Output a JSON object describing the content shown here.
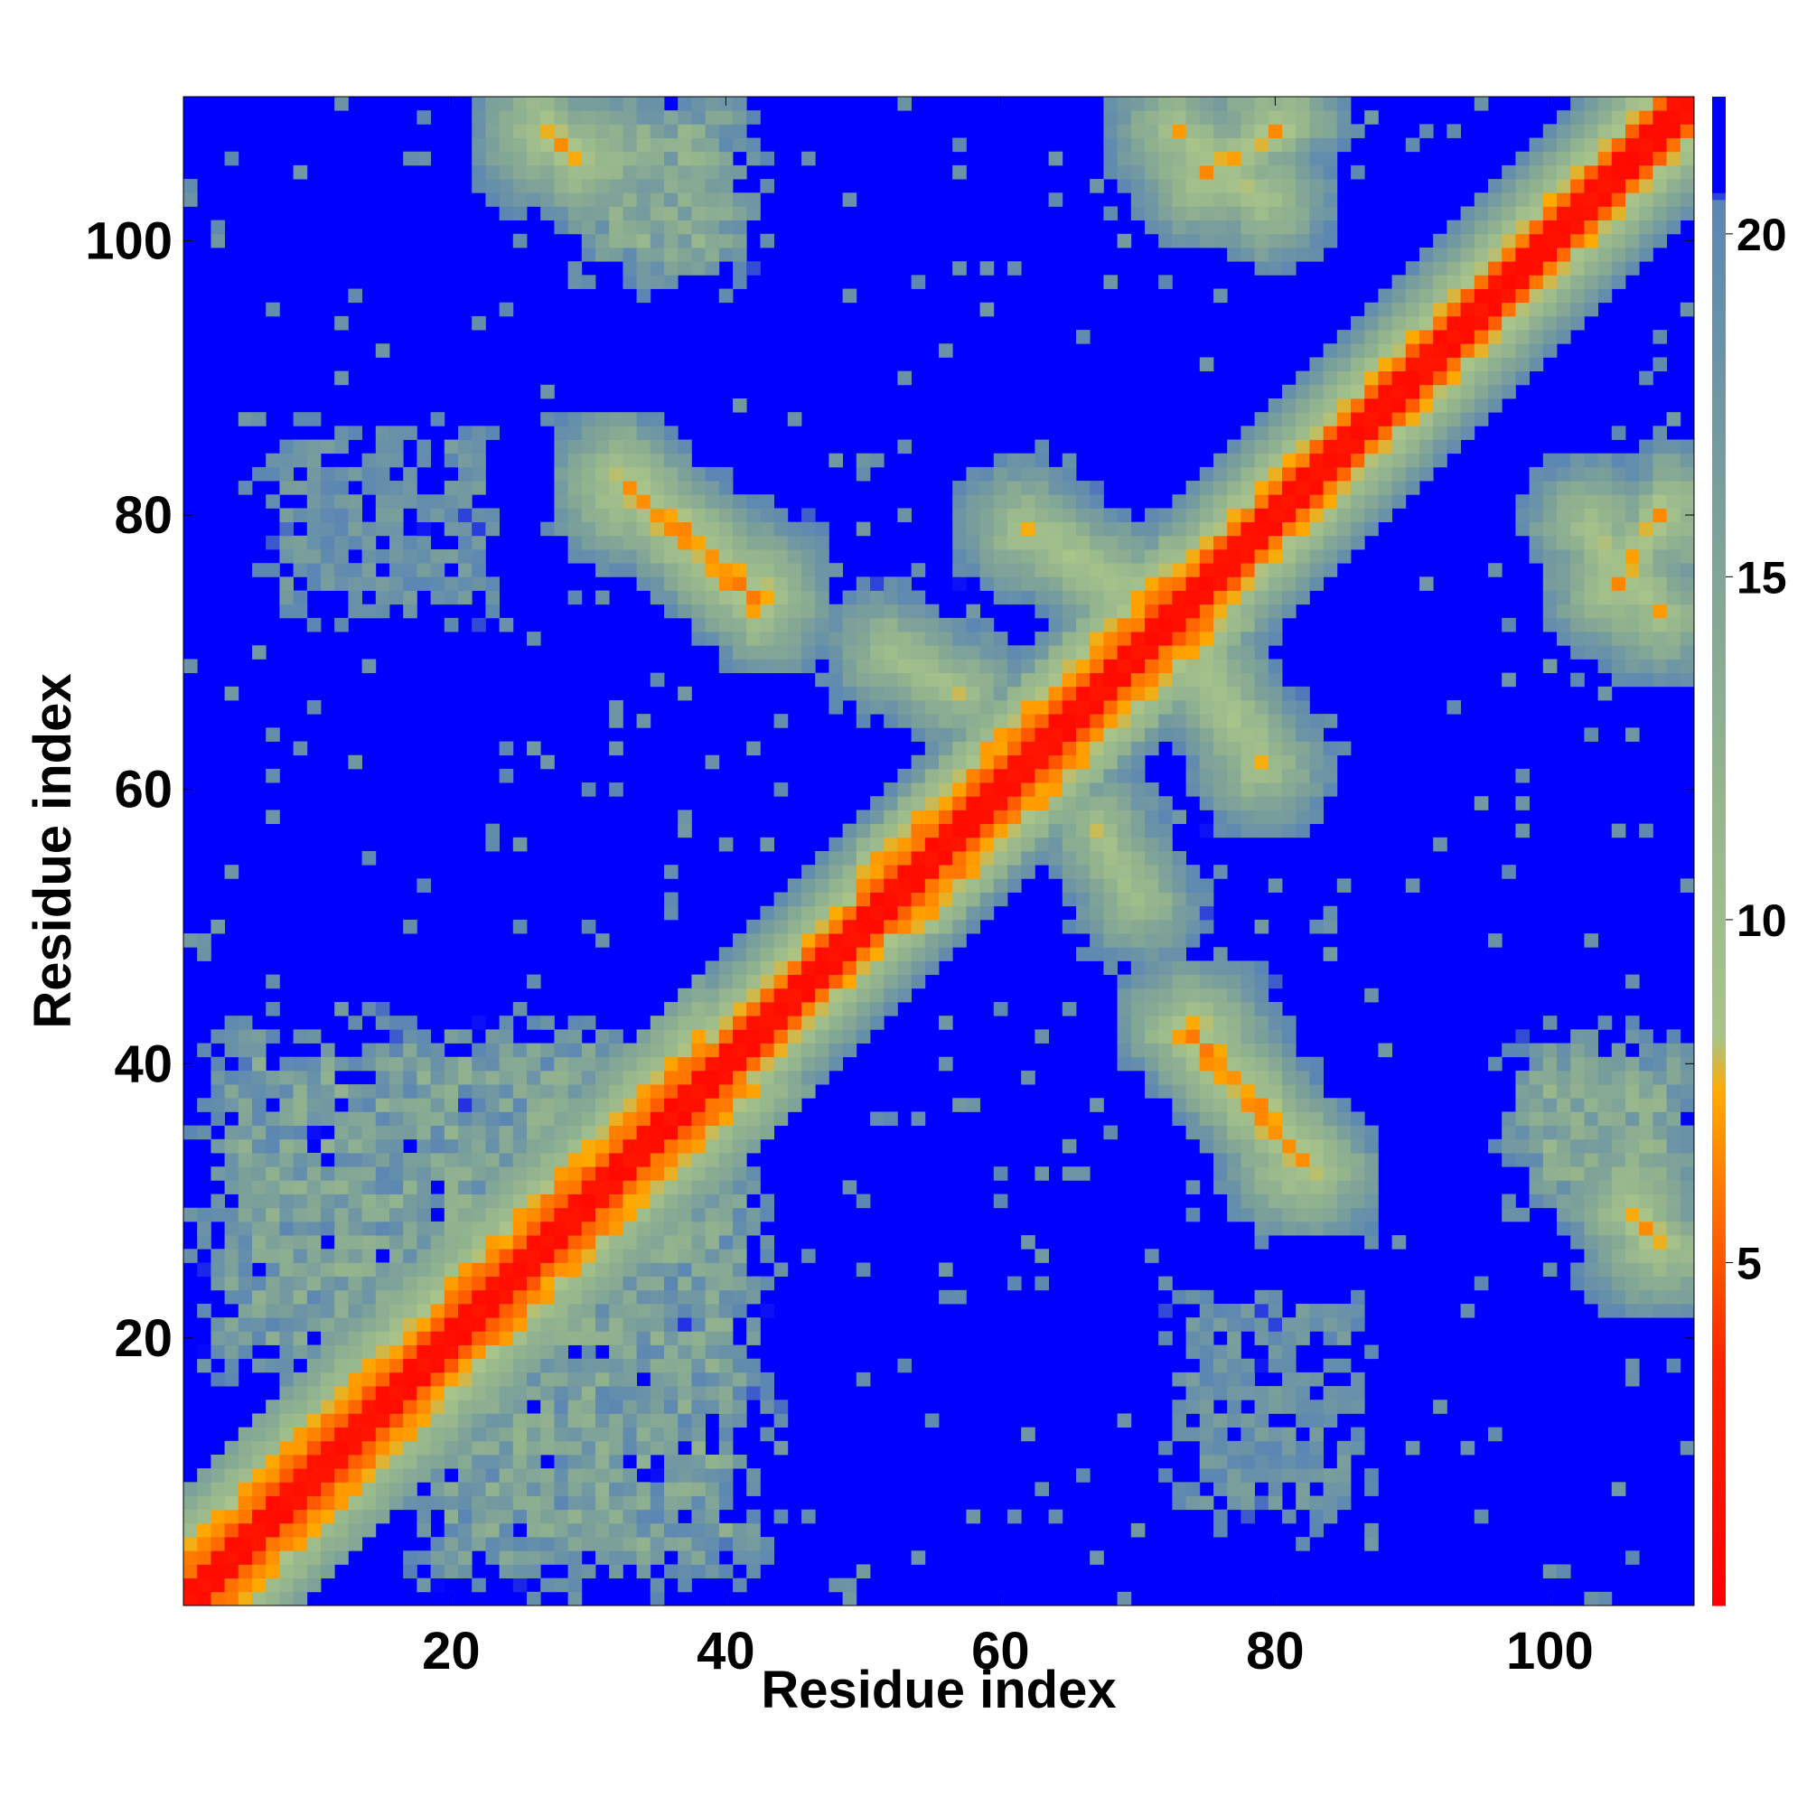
{
  "chart_data": {
    "type": "heatmap",
    "title": "",
    "xlabel": "Residue index",
    "ylabel": "Residue index",
    "n_residues": 110,
    "xlim": [
      1,
      110
    ],
    "ylim": [
      1,
      110
    ],
    "x_ticks": [
      20,
      40,
      60,
      80,
      100
    ],
    "y_ticks": [
      20,
      40,
      60,
      80,
      100
    ],
    "colorbar": {
      "range": [
        0,
        22
      ],
      "ticks": [
        5,
        10,
        15,
        20
      ],
      "stops": [
        {
          "value": 0,
          "color": "#ff0000"
        },
        {
          "value": 3.5,
          "color": "#ff2200"
        },
        {
          "value": 5.5,
          "color": "#ff6600"
        },
        {
          "value": 7.5,
          "color": "#ffaa00"
        },
        {
          "value": 8.3,
          "color": "#a8c48a"
        },
        {
          "value": 12,
          "color": "#94b48e"
        },
        {
          "value": 16,
          "color": "#7ba09a"
        },
        {
          "value": 20.5,
          "color": "#5b86b3"
        },
        {
          "value": 20.6,
          "color": "#0000ff"
        },
        {
          "value": 22,
          "color": "#0000ff"
        }
      ],
      "background_color": "#0000ff"
    },
    "features": [
      {
        "kind": "diagonal",
        "from": 1,
        "to": 110,
        "halfwidth": 9,
        "core": 1.5
      },
      {
        "kind": "helix_band",
        "from": 1,
        "to": 38,
        "extent": 8
      },
      {
        "kind": "helix_band",
        "from": 50,
        "to": 72,
        "extent": 6
      },
      {
        "kind": "contact",
        "i_from": 33,
        "i_to": 42,
        "j_from": 74,
        "j_to": 82,
        "orientation": "anti",
        "min": 5,
        "spread": 7
      },
      {
        "kind": "contact",
        "i_from": 27,
        "i_to": 29,
        "j_from": 106,
        "j_to": 108,
        "orientation": "anti",
        "min": 6,
        "spread": 7
      },
      {
        "kind": "contact",
        "i_from": 105,
        "i_to": 108,
        "j_from": 75,
        "j_to": 80,
        "orientation": "parallel",
        "min": 6,
        "spread": 6
      },
      {
        "kind": "contact",
        "i_from": 62,
        "i_to": 70,
        "j_from": 74,
        "j_to": 79,
        "orientation": "anti",
        "min": 7,
        "spread": 6
      },
      {
        "kind": "contact",
        "i_from": 52,
        "i_to": 57,
        "j_from": 67,
        "j_to": 70,
        "orientation": "anti",
        "min": 8,
        "spread": 4
      },
      {
        "kind": "contact",
        "i_from": 73,
        "i_to": 79,
        "j_from": 103,
        "j_to": 108,
        "orientation": "anti",
        "min": 7,
        "spread": 5
      },
      {
        "kind": "contact",
        "i_from": 5,
        "i_to": 30,
        "j_from": 20,
        "j_to": 40,
        "orientation": "box",
        "min": 12,
        "spread": 9
      },
      {
        "kind": "contact",
        "i_from": 32,
        "i_to": 39,
        "j_from": 100,
        "j_to": 108,
        "orientation": "box",
        "min": 11,
        "spread": 7
      },
      {
        "kind": "contact",
        "i_from": 8,
        "i_to": 22,
        "j_from": 74,
        "j_to": 85,
        "orientation": "box",
        "min": 16,
        "spread": 6
      }
    ]
  }
}
